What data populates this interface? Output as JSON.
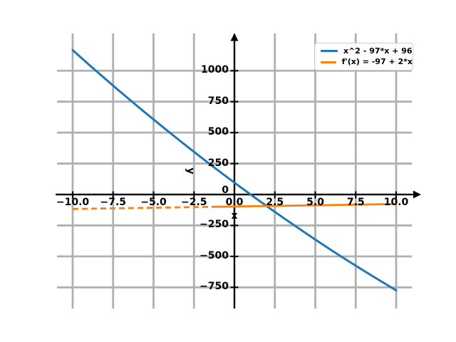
{
  "figure": {
    "background": "#ffffff"
  },
  "chart_data": {
    "type": "line",
    "title": "",
    "xlabel": "x",
    "ylabel": "y",
    "xlim": [
      -10.95,
      10.95
    ],
    "ylim": [
      -920,
      1300
    ],
    "grid": true,
    "grid_color": "#b0b0b0",
    "axis_color": "#000000",
    "x_ticks": {
      "values": [
        -10,
        -7.5,
        -5,
        -2.5,
        0,
        2.5,
        5,
        7.5,
        10
      ],
      "labels": [
        "−10.0",
        "−7.5",
        "−5.0",
        "−2.5",
        "0.0",
        "2.5",
        "5.0",
        "7.5",
        "10.0"
      ]
    },
    "y_ticks": {
      "values": [
        1000,
        750,
        500,
        250,
        0,
        -250,
        -500,
        -750
      ],
      "labels": [
        "1000",
        "750",
        "500",
        "250",
        "0",
        "−250",
        "−500",
        "−750"
      ]
    },
    "legend": {
      "position": "upper right",
      "entries": [
        {
          "label": "x^2 - 97*x + 96",
          "color": "#1f77b4"
        },
        {
          "label": "f'(x) = -97 + 2*x",
          "color": "#ff7f0e"
        }
      ]
    },
    "series": [
      {
        "name": "x^2 - 97*x + 96",
        "color": "#1f77b4",
        "linewidth": 3,
        "linestyle": "solid",
        "x": [
          -10,
          -9,
          -8,
          -7,
          -6,
          -5,
          -4,
          -3,
          -2,
          -1,
          0,
          1,
          2,
          3,
          4,
          5,
          6,
          7,
          8,
          9,
          10
        ],
        "y": [
          1166,
          1050,
          936,
          824,
          714,
          606,
          500,
          396,
          294,
          194,
          96,
          0,
          -94,
          -186,
          -276,
          -364,
          -450,
          -534,
          -616,
          -696,
          -774
        ]
      },
      {
        "name": "f'(x) = -97 + 2*x",
        "color": "#ff7f0e",
        "linewidth": 2.8,
        "linestyle": "solid",
        "dashed_appearance_until_x": -1.1,
        "x": [
          -10,
          -1.1,
          10
        ],
        "y": [
          -117,
          -99.2,
          -77
        ]
      }
    ]
  }
}
